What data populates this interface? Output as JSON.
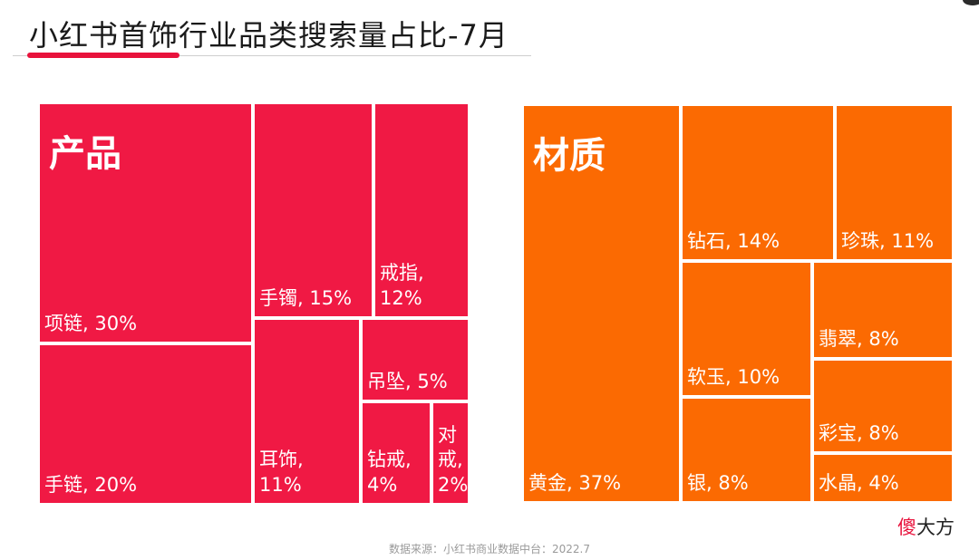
{
  "title": "小红书首饰行业品类搜索量占比-7月",
  "source": "数据来源：小红书商业数据中台：2022.7",
  "watermark": {
    "part1": "傻",
    "part2": "大方"
  },
  "colors": {
    "product": "#f01944",
    "material": "#fb6a02",
    "accent": "#e8123c"
  },
  "chart_data": [
    {
      "type": "treemap",
      "title": "产品",
      "unit": "%",
      "items": [
        {
          "name": "项链",
          "value": 30,
          "label": "项链, 30%"
        },
        {
          "name": "手链",
          "value": 20,
          "label": "手链, 20%"
        },
        {
          "name": "手镯",
          "value": 15,
          "label": "手镯, 15%"
        },
        {
          "name": "戒指",
          "value": 12,
          "label": "戒指,\n12%"
        },
        {
          "name": "耳饰",
          "value": 11,
          "label": "耳饰,\n11%"
        },
        {
          "name": "吊坠",
          "value": 5,
          "label": "吊坠, 5%"
        },
        {
          "name": "钻戒",
          "value": 4,
          "label": "钻戒,\n4%"
        },
        {
          "name": "对戒",
          "value": 2,
          "label": "对\n戒,\n2%"
        }
      ]
    },
    {
      "type": "treemap",
      "title": "材质",
      "unit": "%",
      "items": [
        {
          "name": "黄金",
          "value": 37,
          "label": "黄金, 37%"
        },
        {
          "name": "钻石",
          "value": 14,
          "label": "钻石, 14%"
        },
        {
          "name": "珍珠",
          "value": 11,
          "label": "珍珠, 11%"
        },
        {
          "name": "软玉",
          "value": 10,
          "label": "软玉, 10%"
        },
        {
          "name": "银",
          "value": 8,
          "label": "银, 8%"
        },
        {
          "name": "翡翠",
          "value": 8,
          "label": "翡翠, 8%"
        },
        {
          "name": "彩宝",
          "value": 8,
          "label": "彩宝, 8%"
        },
        {
          "name": "水晶",
          "value": 4,
          "label": "水晶, 4%"
        }
      ]
    }
  ]
}
